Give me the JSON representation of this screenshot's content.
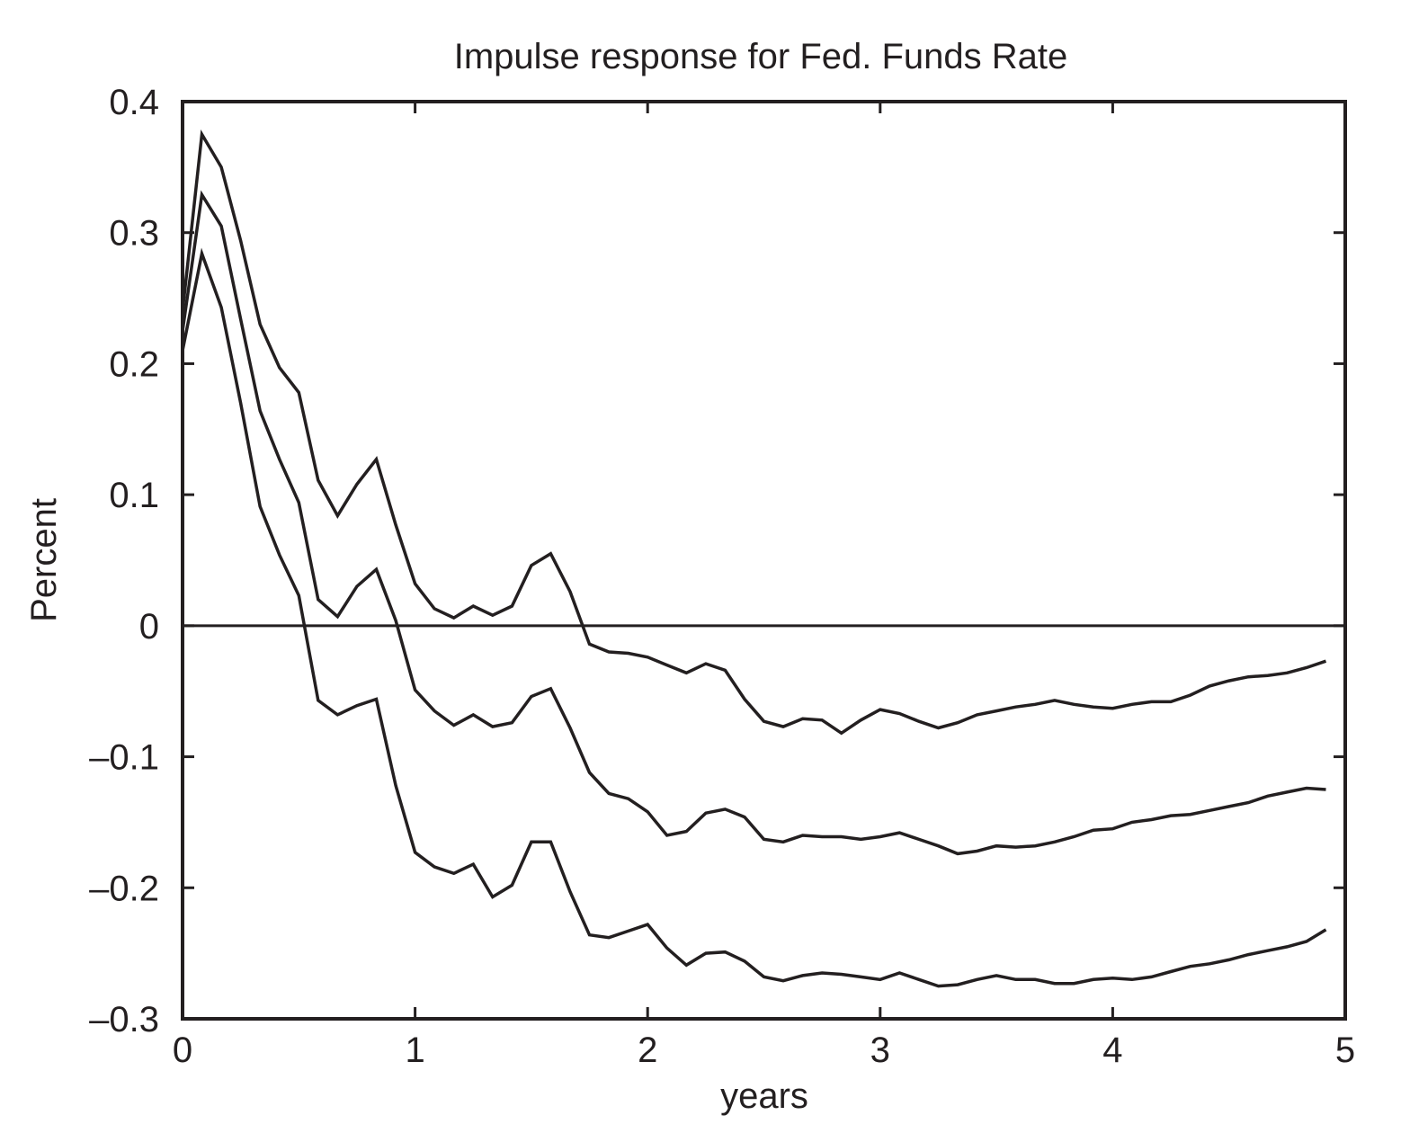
{
  "chart_data": {
    "type": "line",
    "title": "Impulse response for Fed. Funds Rate",
    "xlabel": "years",
    "ylabel": "Percent",
    "xlim": [
      0,
      5
    ],
    "ylim": [
      -0.3,
      0.4
    ],
    "xticks": [
      0,
      1,
      2,
      3,
      4,
      5
    ],
    "xtick_labels": [
      "0",
      "1",
      "2",
      "3",
      "4",
      "5"
    ],
    "yticks": [
      0.4,
      0.3,
      0.2,
      0.1,
      0,
      -0.1,
      -0.2,
      -0.3
    ],
    "ytick_labels": [
      "0.4",
      "0.3",
      "0.2",
      "0.1",
      "0",
      "–0.1",
      "–0.2",
      "–0.3"
    ],
    "grid": false,
    "line_color": "#231f20",
    "zero_line": true,
    "x": [
      0,
      0.0833,
      0.1667,
      0.25,
      0.3333,
      0.4167,
      0.5,
      0.5833,
      0.6667,
      0.75,
      0.8333,
      0.9167,
      1.0,
      1.0833,
      1.1667,
      1.25,
      1.3333,
      1.4167,
      1.5,
      1.5833,
      1.6667,
      1.75,
      1.8333,
      1.9167,
      2.0,
      2.0833,
      2.1667,
      2.25,
      2.3333,
      2.4167,
      2.5,
      2.5833,
      2.6667,
      2.75,
      2.8333,
      2.9167,
      3.0,
      3.0833,
      3.1667,
      3.25,
      3.3333,
      3.4167,
      3.5,
      3.5833,
      3.6667,
      3.75,
      3.8333,
      3.9167,
      4.0,
      4.0833,
      4.1667,
      4.25,
      4.3333,
      4.4167,
      4.5,
      4.5833,
      4.6667,
      4.75,
      4.8333,
      4.9167
    ],
    "series": [
      {
        "values": [
          0.24,
          0.375,
          0.35,
          0.294,
          0.23,
          0.197,
          0.178,
          0.111,
          0.084,
          0.108,
          0.127,
          0.077,
          0.032,
          0.013,
          0.006,
          0.015,
          0.008,
          0.015,
          0.046,
          0.055,
          0.026,
          -0.014,
          -0.02,
          -0.021,
          -0.024,
          -0.03,
          -0.036,
          -0.029,
          -0.034,
          -0.056,
          -0.073,
          -0.077,
          -0.071,
          -0.072,
          -0.082,
          -0.072,
          -0.064,
          -0.067,
          -0.073,
          -0.078,
          -0.074,
          -0.068,
          -0.065,
          -0.062,
          -0.06,
          -0.057,
          -0.06,
          -0.062,
          -0.063,
          -0.06,
          -0.058,
          -0.058,
          -0.053,
          -0.046,
          -0.042,
          -0.039,
          -0.038,
          -0.036,
          -0.032,
          -0.027
        ]
      },
      {
        "values": [
          0.225,
          0.329,
          0.305,
          0.234,
          0.164,
          0.127,
          0.094,
          0.02,
          0.007,
          0.03,
          0.043,
          0.004,
          -0.049,
          -0.065,
          -0.076,
          -0.068,
          -0.077,
          -0.074,
          -0.054,
          -0.048,
          -0.078,
          -0.112,
          -0.128,
          -0.132,
          -0.142,
          -0.16,
          -0.157,
          -0.143,
          -0.14,
          -0.146,
          -0.163,
          -0.165,
          -0.16,
          -0.161,
          -0.161,
          -0.163,
          -0.161,
          -0.158,
          -0.163,
          -0.168,
          -0.174,
          -0.172,
          -0.168,
          -0.169,
          -0.168,
          -0.165,
          -0.161,
          -0.156,
          -0.155,
          -0.15,
          -0.148,
          -0.145,
          -0.144,
          -0.141,
          -0.138,
          -0.135,
          -0.13,
          -0.127,
          -0.124,
          -0.125
        ]
      },
      {
        "values": [
          0.21,
          0.284,
          0.243,
          0.17,
          0.091,
          0.054,
          0.023,
          -0.057,
          -0.068,
          -0.061,
          -0.056,
          -0.122,
          -0.173,
          -0.184,
          -0.189,
          -0.182,
          -0.207,
          -0.198,
          -0.165,
          -0.165,
          -0.203,
          -0.236,
          -0.238,
          -0.233,
          -0.228,
          -0.246,
          -0.259,
          -0.25,
          -0.249,
          -0.256,
          -0.268,
          -0.271,
          -0.267,
          -0.265,
          -0.266,
          -0.268,
          -0.27,
          -0.265,
          -0.27,
          -0.275,
          -0.274,
          -0.27,
          -0.267,
          -0.27,
          -0.27,
          -0.273,
          -0.273,
          -0.27,
          -0.269,
          -0.27,
          -0.268,
          -0.264,
          -0.26,
          -0.258,
          -0.255,
          -0.251,
          -0.248,
          -0.245,
          -0.241,
          -0.232
        ]
      }
    ]
  }
}
